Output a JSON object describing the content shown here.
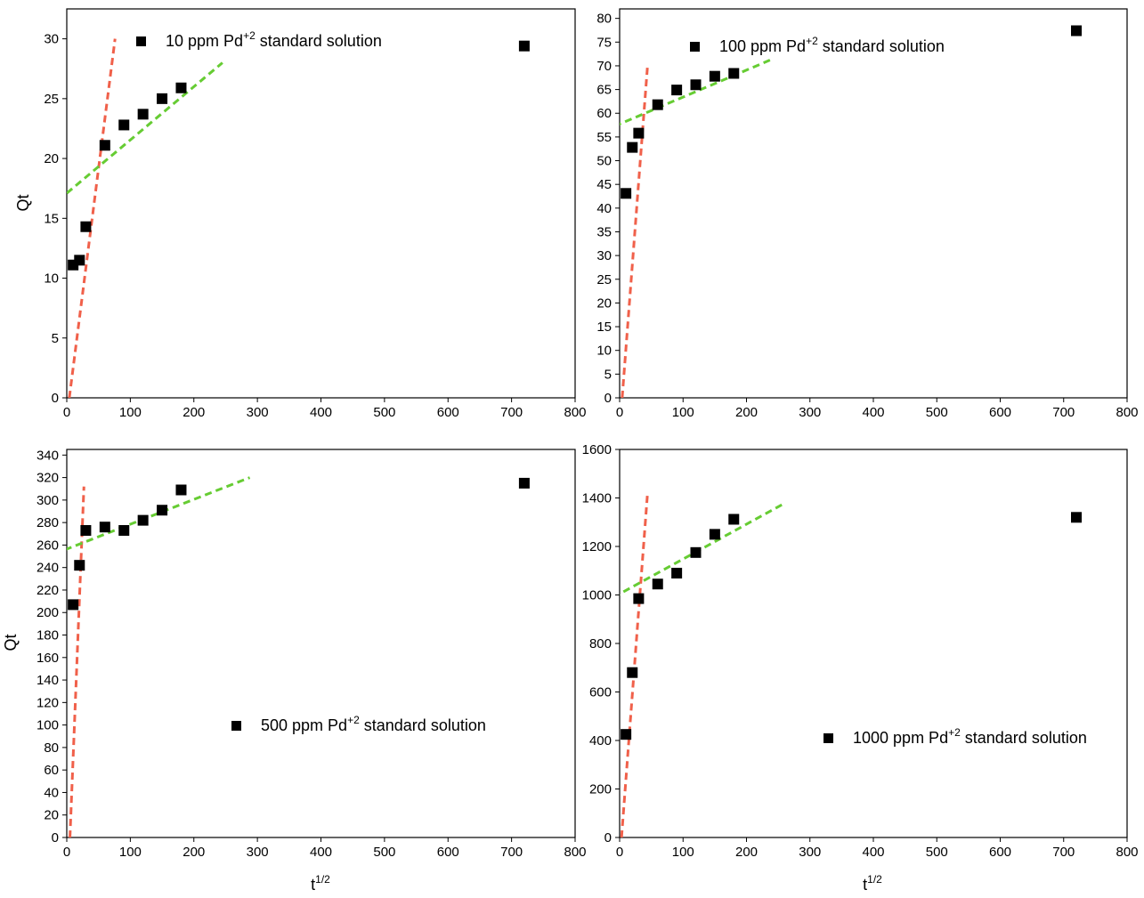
{
  "colors": {
    "marker": "#000000",
    "fit_initial": "#f0604a",
    "fit_secondary": "#66cc33",
    "axis": "#000000",
    "background": "#ffffff"
  },
  "chart_data": [
    {
      "type": "scatter",
      "xlabel": "",
      "ylabel": "Qt",
      "xlim": [
        0,
        800
      ],
      "ylim": [
        0,
        32.5
      ],
      "x_ticks": [
        0,
        100,
        200,
        300,
        400,
        500,
        600,
        700,
        800
      ],
      "y_ticks": [
        0,
        5,
        10,
        15,
        20,
        25,
        30
      ],
      "legend": {
        "text": "10 ppm Pd",
        "superscript": "+2",
        "suffix": " standard solution",
        "position": "top-left"
      },
      "series": [
        {
          "x": [
            10,
            20,
            30,
            60,
            90,
            120,
            150,
            180,
            720
          ],
          "y": [
            11.1,
            11.5,
            14.3,
            21.1,
            22.8,
            23.7,
            25.0,
            25.9,
            29.4
          ]
        }
      ],
      "fit_lines": [
        {
          "style": "red-dashed",
          "x": [
            4,
            76
          ],
          "y": [
            0,
            30
          ]
        },
        {
          "style": "green-dashed",
          "x": [
            0,
            245
          ],
          "y": [
            17.1,
            28.0
          ]
        }
      ]
    },
    {
      "type": "scatter",
      "xlabel": "",
      "ylabel": "",
      "xlim": [
        0,
        800
      ],
      "ylim": [
        0,
        82
      ],
      "x_ticks": [
        0,
        100,
        200,
        300,
        400,
        500,
        600,
        700,
        800
      ],
      "y_ticks": [
        0,
        5,
        10,
        15,
        20,
        25,
        30,
        35,
        40,
        45,
        50,
        55,
        60,
        65,
        70,
        75,
        80
      ],
      "legend": {
        "text": "100 ppm Pd",
        "superscript": "+2",
        "suffix": " standard solution",
        "position": "top-center"
      },
      "series": [
        {
          "x": [
            10,
            20,
            30,
            60,
            90,
            120,
            150,
            180,
            720
          ],
          "y": [
            43.1,
            52.8,
            55.8,
            61.8,
            64.9,
            66.0,
            67.8,
            68.4,
            77.4
          ]
        }
      ],
      "fit_lines": [
        {
          "style": "red-dashed",
          "x": [
            4,
            44
          ],
          "y": [
            0,
            70
          ]
        },
        {
          "style": "green-dashed",
          "x": [
            -25,
            237
          ],
          "y": [
            56.3,
            71.2
          ]
        }
      ]
    },
    {
      "type": "scatter",
      "xlabel": "t",
      "xlabel_sup": "1/2",
      "ylabel": "Qt",
      "xlim": [
        0,
        800
      ],
      "ylim": [
        0,
        345
      ],
      "x_ticks": [
        0,
        100,
        200,
        300,
        400,
        500,
        600,
        700,
        800
      ],
      "y_ticks": [
        0,
        20,
        40,
        60,
        80,
        100,
        120,
        140,
        160,
        180,
        200,
        220,
        240,
        260,
        280,
        300,
        320,
        340
      ],
      "legend": {
        "text": "500 ppm Pd",
        "superscript": "+2",
        "suffix": " standard solution",
        "position": "middle-center"
      },
      "series": [
        {
          "x": [
            10,
            20,
            30,
            60,
            90,
            120,
            150,
            180,
            720
          ],
          "y": [
            207,
            242,
            273,
            276,
            273,
            282,
            291,
            309,
            315
          ]
        }
      ],
      "fit_lines": [
        {
          "style": "red-dashed",
          "x": [
            5,
            27
          ],
          "y": [
            0,
            312
          ]
        },
        {
          "style": "green-dashed",
          "x": [
            -20,
            288
          ],
          "y": [
            252,
            320
          ]
        }
      ]
    },
    {
      "type": "scatter",
      "xlabel": "t",
      "xlabel_sup": "1/2",
      "ylabel": "",
      "xlim": [
        0,
        800
      ],
      "ylim": [
        0,
        1600
      ],
      "x_ticks": [
        0,
        100,
        200,
        300,
        400,
        500,
        600,
        700,
        800
      ],
      "y_ticks": [
        0,
        200,
        400,
        600,
        800,
        1000,
        1200,
        1400,
        1600
      ],
      "legend": {
        "text": "1000 ppm Pd",
        "superscript": "+2",
        "suffix": " standard solution",
        "position": "bottom-right"
      },
      "series": [
        {
          "x": [
            10,
            20,
            30,
            60,
            90,
            120,
            150,
            180,
            720
          ],
          "y": [
            425,
            680,
            985,
            1045,
            1090,
            1175,
            1250,
            1312,
            1320
          ]
        }
      ],
      "fit_lines": [
        {
          "style": "red-dashed",
          "x": [
            3,
            44
          ],
          "y": [
            0,
            1420
          ]
        },
        {
          "style": "green-dashed",
          "x": [
            -10,
            258
          ],
          "y": [
            990,
            1375
          ]
        }
      ]
    }
  ]
}
